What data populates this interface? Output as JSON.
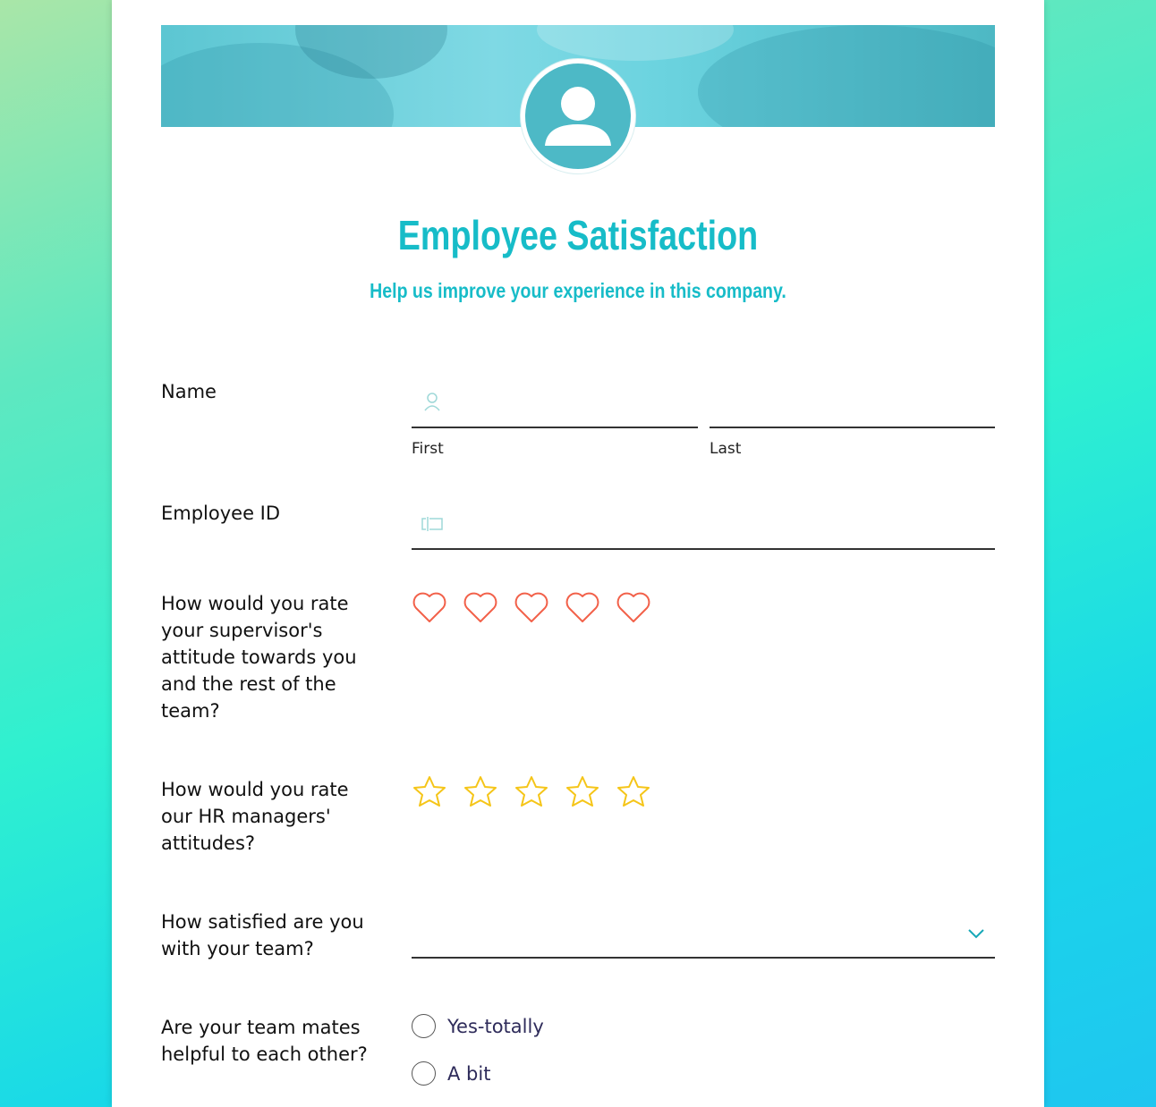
{
  "header": {
    "title": "Employee Satisfaction",
    "subtitle": "Help us improve your experience in this company."
  },
  "fields": {
    "name": {
      "label": "Name",
      "first": "First",
      "last": "Last"
    },
    "employee_id": {
      "label": "Employee ID"
    },
    "supervisor": {
      "label": "How would you rate your supervisor's attitude towards you and the rest of the team?",
      "max": 5,
      "value": 0
    },
    "hr": {
      "label": "How would you rate our HR managers' attitudes?",
      "max": 5,
      "value": 0
    },
    "team": {
      "label": "How satisfied are you with your team?",
      "value": ""
    },
    "helpful": {
      "label": "Are your team mates helpful to each other?",
      "options": [
        "Yes-totally",
        "A bit"
      ]
    }
  },
  "colors": {
    "accent": "#17bcc8",
    "heart": "#f2614a",
    "star": "#f5c518"
  }
}
